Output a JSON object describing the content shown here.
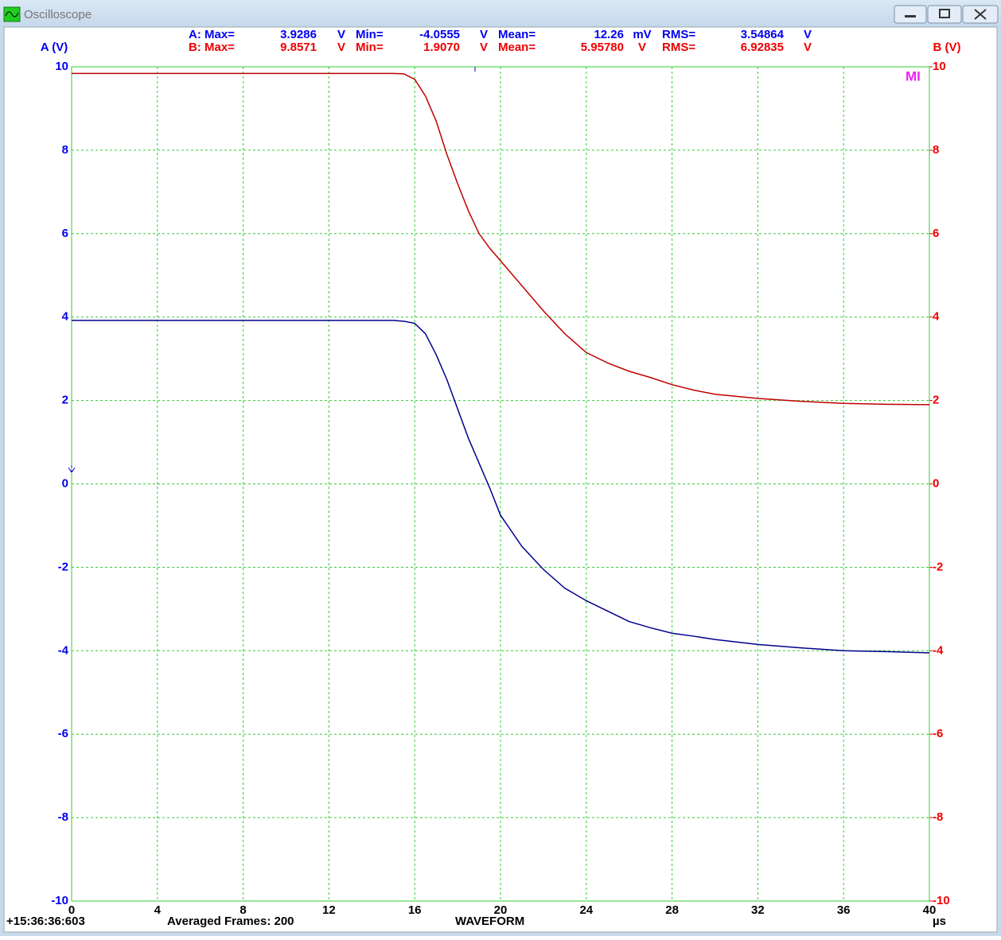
{
  "window": {
    "title": "Oscilloscope"
  },
  "measurements": [
    [
      "A: Max=",
      "3.9286",
      "V",
      "Min=",
      "-4.0555",
      "V",
      "Mean=",
      "12.26",
      "mV",
      "RMS=",
      "3.54864",
      "V"
    ],
    [
      "B: Max=",
      "9.8571",
      "V",
      "Min=",
      "1.9070",
      "V",
      "Mean=",
      "5.95780",
      "V",
      "RMS=",
      "6.92835",
      "V"
    ]
  ],
  "status": {
    "timestamp": "+15:36:36:603",
    "frames": "Averaged Frames: 200",
    "mode": "WAVEFORM"
  },
  "marker": "MI",
  "chart_data": {
    "type": "line",
    "ylabel": "A (V)",
    "y2label": "B (V)",
    "xlabel": "µs",
    "xlim": [
      0,
      40
    ],
    "xticks": [
      0,
      4,
      8,
      12,
      16,
      20,
      24,
      28,
      32,
      36,
      40
    ],
    "ylim": [
      -10,
      10
    ],
    "yticks": [
      -10,
      -8,
      -6,
      -4,
      -2,
      0,
      2,
      4,
      6,
      8,
      10
    ],
    "y2lim": [
      -10,
      10
    ],
    "y2ticks": [
      -10,
      -8,
      -6,
      -4,
      -2,
      0,
      2,
      4,
      6,
      8,
      10
    ],
    "grid": true,
    "x": [
      0,
      4,
      8,
      12,
      15,
      15.5,
      16,
      16.5,
      17,
      17.5,
      18,
      18.5,
      19,
      19.5,
      20,
      21,
      22,
      23,
      24,
      25,
      26,
      27,
      28,
      29,
      30,
      32,
      34,
      36,
      38,
      40
    ],
    "series": [
      {
        "color": "#00008b",
        "values": [
          3.92,
          3.92,
          3.92,
          3.92,
          3.92,
          3.9,
          3.85,
          3.6,
          3.1,
          2.5,
          1.8,
          1.1,
          0.5,
          -0.1,
          -0.75,
          -1.5,
          -2.05,
          -2.5,
          -2.8,
          -3.05,
          -3.3,
          -3.45,
          -3.58,
          -3.65,
          -3.73,
          -3.85,
          -3.93,
          -4.0,
          -4.02,
          -4.05
        ]
      },
      {
        "color": "#c00000",
        "axis": "y2",
        "values": [
          9.84,
          9.84,
          9.84,
          9.84,
          9.84,
          9.83,
          9.7,
          9.3,
          8.7,
          7.9,
          7.2,
          6.55,
          6.0,
          5.65,
          5.35,
          4.75,
          4.15,
          3.6,
          3.15,
          2.9,
          2.7,
          2.55,
          2.38,
          2.25,
          2.15,
          2.05,
          1.98,
          1.93,
          1.91,
          1.9
        ]
      }
    ]
  }
}
